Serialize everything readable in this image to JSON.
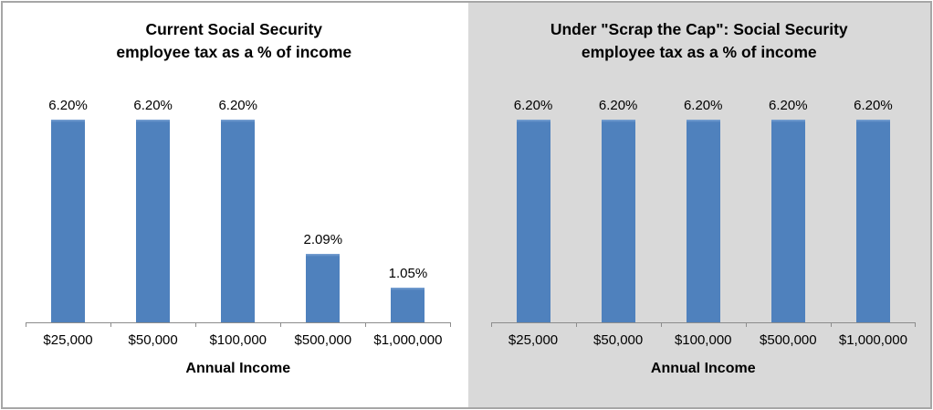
{
  "colors": {
    "bar": "#4f81bd",
    "bar_top_highlight": "#7ca4d4",
    "left_panel_bg": "#ffffff",
    "right_panel_bg": "#d9d9d9",
    "frame_border": "#a6a6a6",
    "divider": "#969696",
    "axis": "#8c8c8c",
    "text": "#000000"
  },
  "chart_data": [
    {
      "type": "bar",
      "title_lines": [
        "Current Social Security",
        "employee tax as a % of income"
      ],
      "categories": [
        "$25,000",
        "$50,000",
        "$100,000",
        "$500,000",
        "$1,000,000"
      ],
      "values": [
        6.2,
        6.2,
        6.2,
        2.09,
        1.05
      ],
      "data_labels": [
        "6.20%",
        "6.20%",
        "6.20%",
        "2.09%",
        "1.05%"
      ],
      "xlabel": "Annual Income",
      "ylabel": "",
      "ylim": [
        0,
        6.2
      ],
      "grid": false,
      "legend": "none",
      "y_axis_visible": false,
      "background": "#ffffff",
      "bar_color": "#4f81bd"
    },
    {
      "type": "bar",
      "title_lines": [
        "Under \"Scrap the Cap\": Social Security",
        "employee tax as a % of income"
      ],
      "categories": [
        "$25,000",
        "$50,000",
        "$100,000",
        "$500,000",
        "$1,000,000"
      ],
      "values": [
        6.2,
        6.2,
        6.2,
        6.2,
        6.2
      ],
      "data_labels": [
        "6.20%",
        "6.20%",
        "6.20%",
        "6.20%",
        "6.20%"
      ],
      "xlabel": "Annual Income",
      "ylabel": "",
      "ylim": [
        0,
        6.2
      ],
      "grid": false,
      "legend": "none",
      "y_axis_visible": false,
      "background": "#d9d9d9",
      "bar_color": "#4f81bd"
    }
  ]
}
